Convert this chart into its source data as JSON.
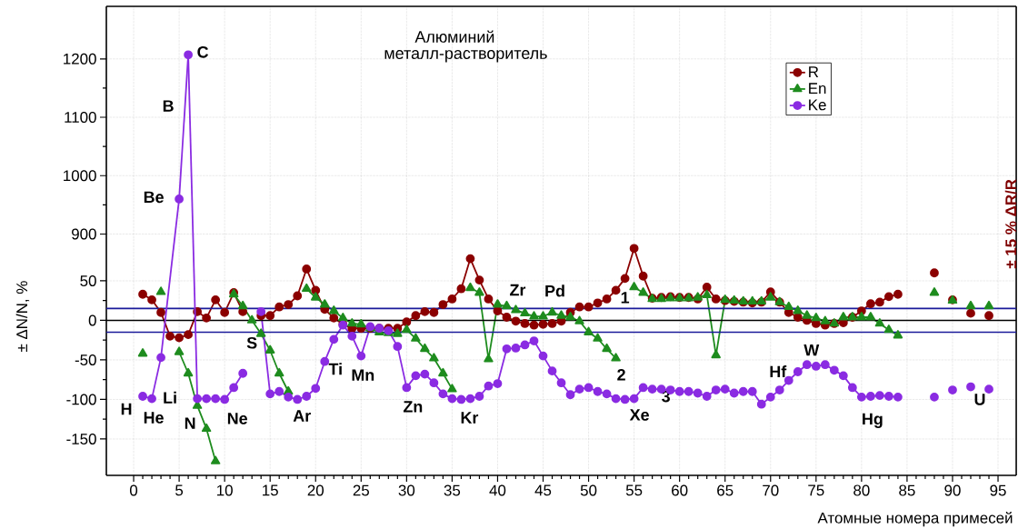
{
  "chart_data": [
    {
      "type": "line",
      "title": "Алюминий",
      "subtitle": "металл-растворитель",
      "series": [
        {
          "color": "#8a2be2",
          "marker": "circle",
          "x": [
            5,
            6
          ],
          "values": [
            960,
            1207
          ]
        }
      ],
      "xlim": [
        -3,
        97
      ],
      "ylim": [
        893,
        1290
      ],
      "xticks": [
        0,
        5,
        10,
        15,
        20,
        25,
        30,
        35,
        40,
        45,
        50,
        55,
        60,
        65,
        70,
        75,
        80,
        85,
        90,
        95
      ],
      "yticks": [
        900,
        1000,
        1100,
        1200
      ],
      "tick_labels": "y",
      "annotations": [
        {
          "text": "Be",
          "x": 5,
          "y": 960
        },
        {
          "text": "B",
          "x": 5.5,
          "y": 1083.5
        },
        {
          "text": "C",
          "x": 6,
          "y": 1207
        }
      ],
      "grid": true,
      "line_style": "solid"
    },
    {
      "type": "line",
      "xlabel": "Атомные номера примесей",
      "ylabel": "± ΔN/N, %",
      "x": [
        1,
        2,
        3,
        4,
        5,
        6,
        7,
        8,
        9,
        10,
        11,
        12,
        13,
        14,
        15,
        16,
        17,
        18,
        19,
        20,
        21,
        22,
        23,
        24,
        25,
        26,
        27,
        28,
        29,
        30,
        31,
        32,
        33,
        34,
        35,
        36,
        37,
        38,
        39,
        40,
        41,
        42,
        43,
        44,
        45,
        46,
        47,
        48,
        49,
        50,
        51,
        52,
        53,
        54,
        55,
        56,
        57,
        58,
        59,
        60,
        61,
        62,
        63,
        64,
        65,
        66,
        67,
        68,
        69,
        70,
        71,
        72,
        73,
        74,
        75,
        76,
        77,
        78,
        79,
        80,
        81,
        82,
        83,
        84,
        85,
        86,
        87,
        88,
        89,
        90,
        91,
        92,
        93,
        94
      ],
      "series": [
        {
          "name": "R",
          "color": "#8b0000",
          "marker": "circle",
          "values": [
            33,
            26,
            10,
            -20,
            -22,
            -18,
            11,
            3,
            26,
            10,
            35,
            11,
            null,
            6,
            6,
            17,
            20,
            31,
            65,
            38,
            14,
            3,
            -5,
            -10,
            -10,
            -10,
            -10,
            -10,
            -10,
            -2,
            6,
            11,
            10,
            20,
            27,
            40,
            78,
            51,
            27,
            12,
            4,
            -1,
            -4,
            -6,
            -5,
            -4,
            -1,
            10,
            17,
            17,
            22,
            27,
            38,
            53,
            91,
            56,
            28,
            29,
            30,
            29,
            29,
            27,
            42,
            27,
            25,
            24,
            23,
            22,
            23,
            36,
            23,
            10,
            4,
            0,
            -4,
            -6,
            -4,
            -3,
            4,
            12,
            21,
            23,
            30,
            33,
            null,
            null,
            null,
            60,
            null,
            26,
            null,
            9,
            null,
            6
          ]
        },
        {
          "name": "En",
          "color": "#1e8c1e",
          "marker": "triangle",
          "values": [
            -42,
            null,
            36,
            null,
            -40,
            -67,
            -108,
            -137,
            -178,
            null,
            33,
            18,
            0,
            -17,
            -38,
            -67,
            -90,
            null,
            40,
            29,
            20,
            12,
            3,
            -4,
            -5,
            -10,
            -15,
            -16,
            -17,
            -12,
            -23,
            -36,
            -48,
            -67,
            -87,
            null,
            41,
            35,
            -49,
            20,
            18,
            13,
            9,
            5,
            5,
            10,
            6,
            4,
            -1,
            -15,
            -23,
            -36,
            -48,
            null,
            42,
            35,
            27,
            27,
            28,
            28,
            28,
            29,
            32,
            -44,
            26,
            25,
            24,
            24,
            24,
            29,
            23,
            17,
            12,
            6,
            3,
            -1,
            -4,
            4,
            4,
            4,
            4,
            -4,
            -12,
            -19,
            null,
            null,
            null,
            35,
            null,
            25,
            null,
            18,
            null,
            18
          ]
        },
        {
          "name": "Ke",
          "color": "#8a2be2",
          "marker": "circle",
          "x": [
            1,
            2,
            3,
            5,
            6,
            7,
            8,
            9,
            10,
            11,
            12,
            13,
            14,
            15,
            16,
            17,
            18,
            19,
            20,
            21,
            22,
            23,
            24,
            25,
            26,
            27,
            28,
            29,
            30,
            31,
            32,
            33,
            34,
            35,
            36,
            37,
            38,
            39,
            40,
            41,
            42,
            43,
            44,
            45,
            46,
            47,
            48,
            49,
            50,
            51,
            52,
            53,
            54,
            55,
            56,
            57,
            58,
            59,
            60,
            61,
            62,
            63,
            64,
            65,
            66,
            67,
            68,
            69,
            70,
            71,
            72,
            73,
            74,
            75,
            76,
            77,
            78,
            79,
            80,
            81,
            82,
            83,
            84,
            85,
            86,
            87,
            88,
            89,
            90,
            91,
            92,
            93,
            94
          ],
          "values": [
            -96,
            -99,
            -47,
            null,
            null,
            -99,
            -99,
            -99,
            -100,
            -85,
            -67,
            null,
            11,
            -93,
            -90,
            -97,
            -100,
            -96,
            -86,
            -52,
            -24,
            -6,
            -20,
            -45,
            -8,
            -10,
            -13,
            -33,
            -85,
            -70,
            -68,
            -79,
            -93,
            -99,
            -100,
            -99,
            -96,
            -83,
            -80,
            -36,
            -35,
            -31,
            -26,
            -45,
            -64,
            -79,
            -94,
            -87,
            -85,
            -90,
            -93,
            -99,
            -100,
            -99,
            -85,
            -87,
            -87,
            -88,
            -90,
            -90,
            -92,
            -96,
            -88,
            -87,
            -92,
            -90,
            -90,
            -106,
            -97,
            -88,
            -76,
            -65,
            -56,
            -58,
            -56,
            -63,
            -70,
            -85,
            -97,
            -96,
            -95,
            -96,
            -97,
            null,
            null,
            null,
            -97,
            null,
            -88,
            null,
            -84,
            null,
            -87
          ]
        }
      ],
      "xlim": [
        -3,
        97
      ],
      "ylim": [
        -196,
        104
      ],
      "xticks": [
        0,
        5,
        10,
        15,
        20,
        25,
        30,
        35,
        40,
        45,
        50,
        55,
        60,
        65,
        70,
        75,
        80,
        85,
        90,
        95
      ],
      "yticks": [
        -150,
        -100,
        -50,
        0,
        50
      ],
      "ref_lines": [
        {
          "axis": "y",
          "value": 15,
          "color": "#1a1a9a"
        },
        {
          "axis": "y",
          "value": -15,
          "color": "#1a1a9a"
        },
        {
          "axis": "y",
          "value": 0,
          "color": "#000000"
        }
      ],
      "annotations": [
        {
          "text": "H",
          "x": 1,
          "y": -96
        },
        {
          "text": "He",
          "x": 2,
          "y": -99
        },
        {
          "text": "Li",
          "x": 3,
          "y": -47
        },
        {
          "text": "N",
          "x": 7,
          "y": -99
        },
        {
          "text": "Ne",
          "x": 10,
          "y": -100
        },
        {
          "text": "S",
          "x": 14,
          "y": -17
        },
        {
          "text": "Ar",
          "x": 18,
          "y": -100
        },
        {
          "text": "Ti",
          "x": 21,
          "y": -52
        },
        {
          "text": "Mn",
          "x": 25,
          "y": -45
        },
        {
          "text": "Zn",
          "x": 30,
          "y": -85
        },
        {
          "text": "Kr",
          "x": 36,
          "y": -100
        },
        {
          "text": "Zr",
          "x": 40,
          "y": 12
        },
        {
          "text": "Pd",
          "x": 46,
          "y": -4
        },
        {
          "text": "1",
          "x": 54,
          "y": 53
        },
        {
          "text": "2",
          "x": 53,
          "y": -48
        },
        {
          "text": "Xe",
          "x": 54,
          "y": -100
        },
        {
          "text": "3",
          "x": 57,
          "y": -87
        },
        {
          "text": "Hf",
          "x": 72,
          "y": -76
        },
        {
          "text": "W",
          "x": 74,
          "y": -56
        },
        {
          "text": "Hg",
          "x": 80,
          "y": -97
        },
        {
          "text": "U",
          "x": 92,
          "y": -84
        },
        "± 15 % ΔR/R"
      ],
      "grid": true,
      "legend": "top right",
      "line_style": "solid"
    }
  ]
}
